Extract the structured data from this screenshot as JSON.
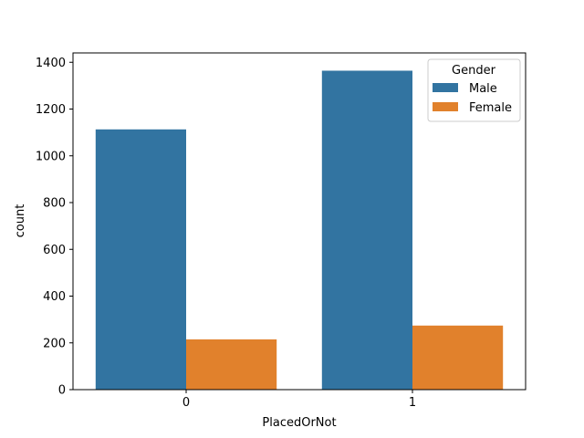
{
  "chart_data": {
    "type": "bar",
    "title": "",
    "xlabel": "PlacedOrNot",
    "ylabel": "count",
    "categories": [
      "0",
      "1"
    ],
    "series": [
      {
        "name": "Male",
        "values": [
          1113,
          1364
        ],
        "color": "#3274a1"
      },
      {
        "name": "Female",
        "values": [
          215,
          274
        ],
        "color": "#e1812c"
      }
    ],
    "ylim": [
      0,
      1440
    ],
    "yticks": [
      0,
      200,
      400,
      600,
      800,
      1000,
      1200,
      1400
    ],
    "grid": false,
    "legend": {
      "title": "Gender",
      "position": "top-right"
    }
  }
}
